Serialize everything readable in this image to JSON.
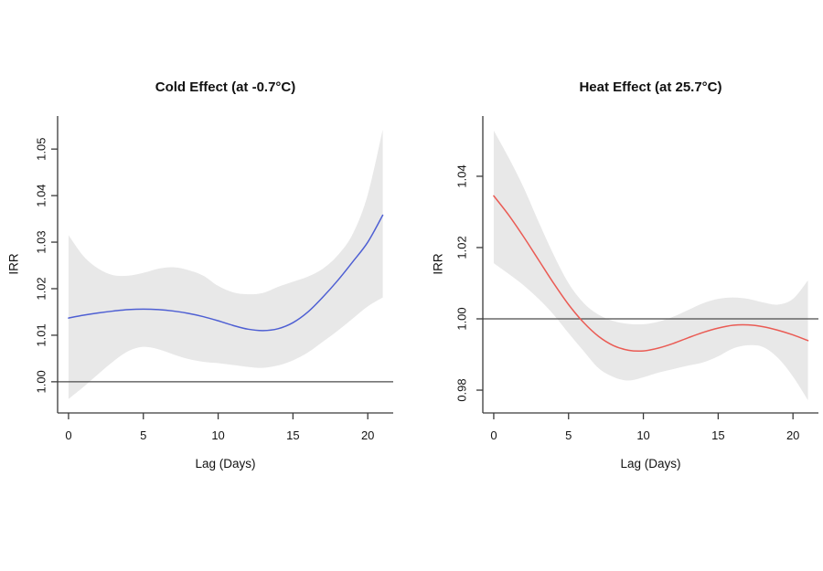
{
  "page": {
    "background": "#ffffff"
  },
  "chart_data": [
    {
      "type": "line",
      "title": "Cold Effect (at -0.7°C)",
      "xlabel": "Lag (Days)",
      "ylabel": "IRR",
      "x": [
        0,
        1,
        2,
        3,
        4,
        5,
        6,
        7,
        8,
        9,
        10,
        11,
        12,
        13,
        14,
        15,
        16,
        17,
        18,
        19,
        20,
        21
      ],
      "series": [
        {
          "name": "cold-irr-estimate",
          "color": "#4e5fd3",
          "values": [
            1.0137,
            1.0143,
            1.0148,
            1.0152,
            1.0155,
            1.0156,
            1.0155,
            1.0152,
            1.0147,
            1.014,
            1.0131,
            1.0121,
            1.0113,
            1.011,
            1.0114,
            1.0127,
            1.015,
            1.0182,
            1.0218,
            1.0258,
            1.03,
            1.0358
          ]
        }
      ],
      "band": {
        "name": "confidence-band",
        "color": "#e8e8e8",
        "upper": [
          1.0315,
          1.027,
          1.0243,
          1.0229,
          1.0228,
          1.0234,
          1.0243,
          1.0246,
          1.024,
          1.0228,
          1.0206,
          1.0192,
          1.0188,
          1.0191,
          1.0204,
          1.0215,
          1.0226,
          1.0243,
          1.0272,
          1.0318,
          1.0402,
          1.0542
        ],
        "lower": [
          0.9963,
          0.9989,
          1.0017,
          1.0044,
          1.0066,
          1.0075,
          1.007,
          1.0059,
          1.0049,
          1.0043,
          1.004,
          1.0036,
          1.0032,
          1.003,
          1.0035,
          1.0046,
          1.0063,
          1.0086,
          1.011,
          1.0136,
          1.0162,
          1.0181
        ]
      },
      "reference_line": {
        "y": 1.0,
        "color": "#4b4b4b"
      },
      "xticks": {
        "values": [
          0,
          5,
          10,
          15,
          20
        ],
        "labels": [
          "0",
          "5",
          "10",
          "15",
          "20"
        ]
      },
      "yticks": {
        "values": [
          1.0,
          1.01,
          1.02,
          1.03,
          1.04,
          1.05
        ],
        "labels": [
          "1.00",
          "1.01",
          "1.02",
          "1.03",
          "1.04",
          "1.05"
        ]
      },
      "xlim": [
        -0.73,
        21.7
      ],
      "ylim": [
        0.9933,
        1.0571
      ],
      "grid": false,
      "legend": "none"
    },
    {
      "type": "line",
      "title": "Heat Effect (at 25.7°C)",
      "xlabel": "Lag (Days)",
      "ylabel": "IRR",
      "x": [
        0,
        1,
        2,
        3,
        4,
        5,
        6,
        7,
        8,
        9,
        10,
        11,
        12,
        13,
        14,
        15,
        16,
        17,
        18,
        19,
        20,
        21
      ],
      "series": [
        {
          "name": "heat-irr-estimate",
          "color": "#ea5b54",
          "values": [
            1.0345,
            1.0291,
            1.023,
            1.0165,
            1.01,
            1.004,
            0.999,
            0.9951,
            0.9925,
            0.9912,
            0.991,
            0.9918,
            0.9931,
            0.9947,
            0.9962,
            0.9974,
            0.9982,
            0.9983,
            0.9978,
            0.9968,
            0.9955,
            0.9939
          ]
        }
      ],
      "band": {
        "name": "confidence-band",
        "color": "#e8e8e8",
        "upper": [
          1.0528,
          1.0452,
          1.0368,
          1.0272,
          1.018,
          1.01,
          1.0045,
          1.0012,
          0.9994,
          0.9986,
          0.9985,
          0.9992,
          1.0006,
          1.0025,
          1.0044,
          1.0056,
          1.006,
          1.0056,
          1.0046,
          1.004,
          1.0056,
          1.0108
        ],
        "lower": [
          1.0156,
          1.0126,
          1.0094,
          1.0056,
          1.0012,
          0.996,
          0.991,
          0.9862,
          0.9837,
          0.9827,
          0.9836,
          0.9849,
          0.9859,
          0.9869,
          0.9878,
          0.9895,
          0.9917,
          0.9926,
          0.9921,
          0.989,
          0.9838,
          0.9772
        ]
      },
      "reference_line": {
        "y": 1.0,
        "color": "#4b4b4b"
      },
      "xticks": {
        "values": [
          0,
          5,
          10,
          15,
          20
        ],
        "labels": [
          "0",
          "5",
          "10",
          "15",
          "20"
        ]
      },
      "yticks": {
        "values": [
          0.98,
          1.0,
          1.02,
          1.04
        ],
        "labels": [
          "0.98",
          "1.00",
          "1.02",
          "1.04"
        ]
      },
      "xlim": [
        -0.73,
        21.7
      ],
      "ylim": [
        0.9736,
        1.0569
      ],
      "grid": false,
      "legend": "none"
    }
  ]
}
